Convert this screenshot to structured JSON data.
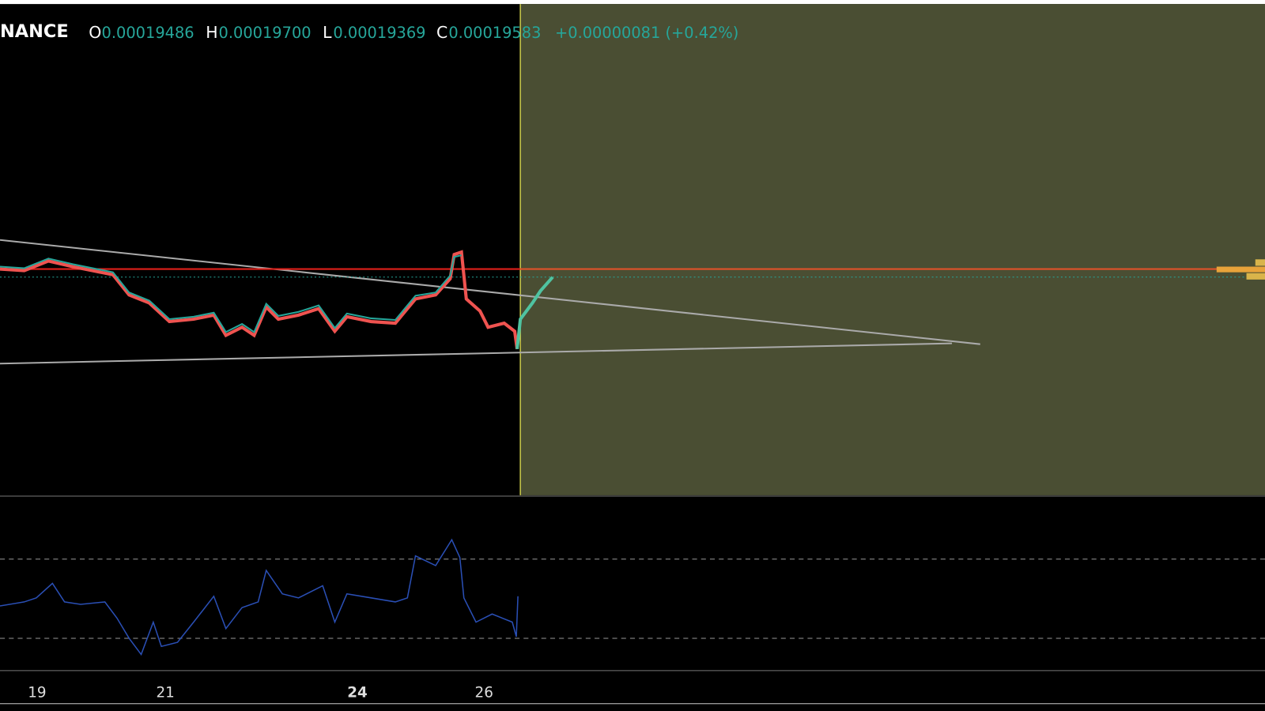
{
  "header": {
    "symbol": "NANCE",
    "ohlc": [
      {
        "label": "O",
        "value": "0.00019486"
      },
      {
        "label": "H",
        "value": "0.00019700"
      },
      {
        "label": "L",
        "value": "0.00019369"
      },
      {
        "label": "C",
        "value": "0.00019583"
      }
    ],
    "change": "+0.00000081 (+0.42%)"
  },
  "x_axis": {
    "labels": [
      "19",
      "21",
      "24",
      "26"
    ]
  }
}
